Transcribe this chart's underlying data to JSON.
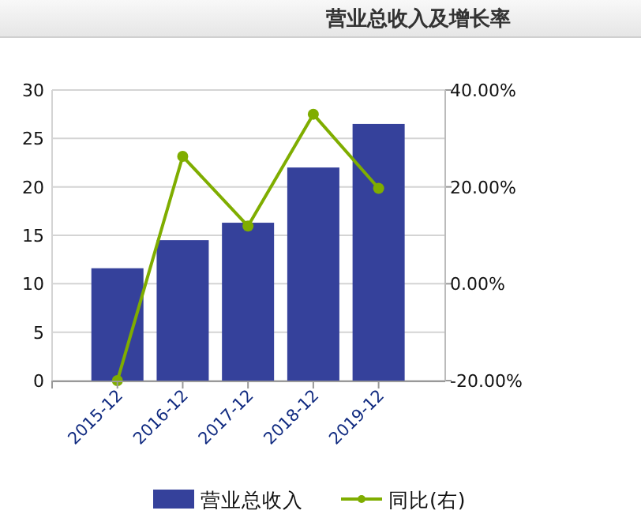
{
  "chart_data": {
    "type": "bar",
    "title": "营业总收入及增长率",
    "categories": [
      "2015-12",
      "2016-12",
      "2017-12",
      "2018-12",
      "2019-12"
    ],
    "series": [
      {
        "name": "营业总收入",
        "color": "#35419b",
        "values": [
          11.6,
          14.5,
          16.3,
          22.0,
          26.5
        ]
      },
      {
        "name": "同比(右)",
        "type": "line",
        "axis": "y2",
        "color": "#7fad00",
        "values": [
          -20,
          26.3,
          11.9,
          35.0,
          19.7
        ]
      }
    ],
    "ylim": [
      0,
      30
    ],
    "yticks": [
      0,
      5,
      10,
      15,
      20,
      25,
      30
    ],
    "y2lim": [
      -20,
      40
    ],
    "y2ticks": [
      {
        "value": -20,
        "label": "-20.00%"
      },
      {
        "value": 0,
        "label": "0.00%"
      },
      {
        "value": 20,
        "label": "20.00%"
      },
      {
        "value": 40,
        "label": "40.00%"
      }
    ],
    "grid": "y",
    "legend": "bottom",
    "marker": "circle"
  }
}
